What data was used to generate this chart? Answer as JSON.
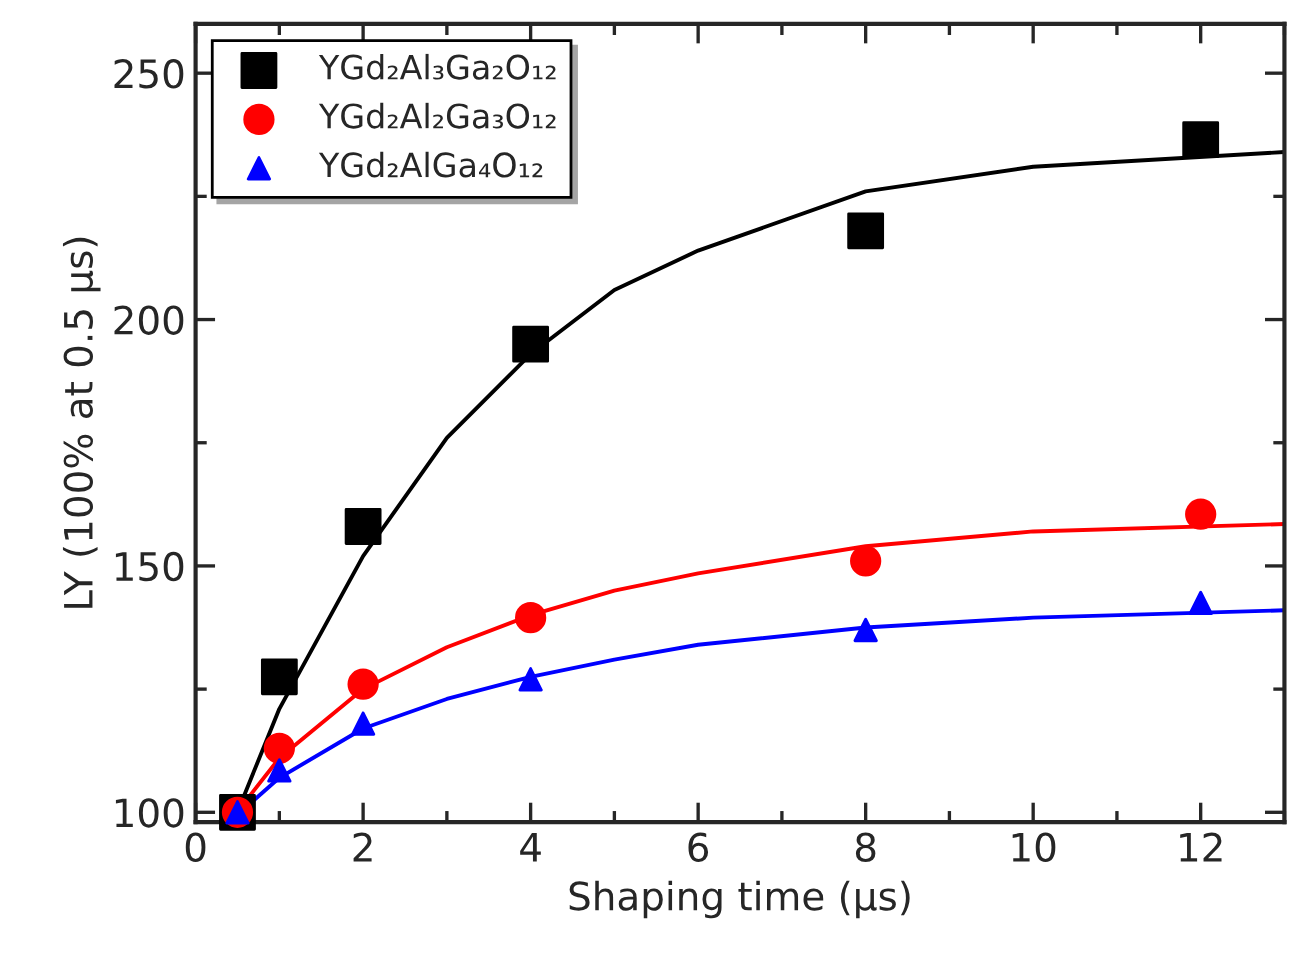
{
  "chart_data": {
    "type": "scatter",
    "xlabel": "Shaping time (μs)",
    "ylabel": "LY (100% at 0.5 μs)",
    "xlim": [
      0,
      13
    ],
    "ylim": [
      98,
      260
    ],
    "xticks": [
      0,
      2,
      4,
      6,
      8,
      10,
      12
    ],
    "yticks": [
      100,
      150,
      200,
      250
    ],
    "grid": false,
    "legend": "top left",
    "series": [
      {
        "name": "YGd₂Al₃Ga₂O₁₂",
        "color": "#000000",
        "marker": "square",
        "x": [
          0.5,
          1,
          2,
          4,
          8,
          12
        ],
        "values": [
          100,
          127.5,
          158,
          195,
          218,
          236.5
        ]
      },
      {
        "name": "YGd₂Al₂Ga₃O₁₂",
        "color": "#ff0000",
        "marker": "circle",
        "x": [
          0.5,
          1,
          2,
          4,
          8,
          12
        ],
        "values": [
          100,
          113,
          126,
          139.5,
          151,
          160.5
        ]
      },
      {
        "name": "YGd₂AlGa₄O₁₂",
        "color": "#0000ff",
        "marker": "triangle",
        "x": [
          0.5,
          1,
          2,
          4,
          8,
          12
        ],
        "values": [
          100,
          108.5,
          118,
          127,
          137,
          142.5
        ]
      },
      {
        "type": "line",
        "color": "#000000",
        "x": [
          0.45,
          1,
          2,
          3,
          4,
          5,
          6,
          8,
          10,
          13
        ],
        "values": [
          98,
          121,
          152,
          176,
          193,
          206,
          214,
          226,
          231,
          234
        ]
      },
      {
        "type": "line",
        "color": "#ff0000",
        "x": [
          0.4,
          1,
          2,
          3,
          4,
          5,
          6,
          8,
          10,
          13
        ],
        "values": [
          98,
          111,
          125,
          133.5,
          140,
          145,
          148.5,
          154,
          157,
          158.5
        ]
      },
      {
        "type": "line",
        "color": "#0000ff",
        "x": [
          0.4,
          1,
          2,
          3,
          4,
          5,
          6,
          8,
          10,
          13
        ],
        "values": [
          98,
          107,
          117,
          123,
          127.5,
          131,
          134,
          137.5,
          139.5,
          141
        ]
      }
    ]
  }
}
